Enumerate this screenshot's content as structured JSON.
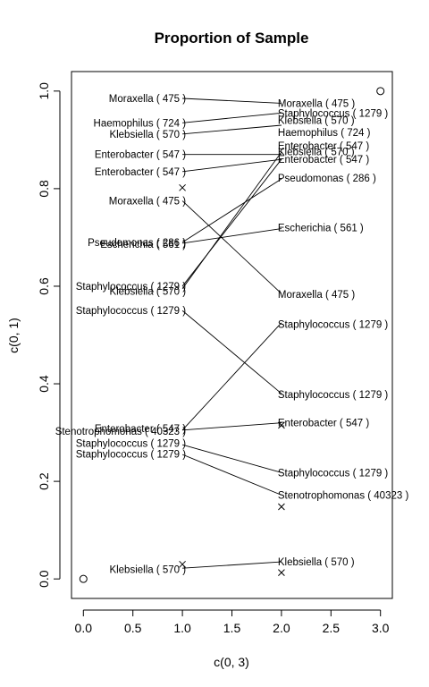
{
  "chart_data": {
    "type": "scatter",
    "title": "Proportion of Sample",
    "xlabel": "c(0, 3)",
    "ylabel": "c(0, 1)",
    "xlim": [
      -0.12,
      3.12
    ],
    "ylim": [
      -0.04,
      1.04
    ],
    "xticks": [
      0.0,
      0.5,
      1.0,
      1.5,
      2.0,
      2.5,
      3.0
    ],
    "xtick_labels": [
      "0.0",
      "0.5",
      "1.0",
      "1.5",
      "2.0",
      "2.5",
      "3.0"
    ],
    "yticks": [
      0.0,
      0.2,
      0.4,
      0.6,
      0.8,
      1.0
    ],
    "ytick_labels": [
      "0.0",
      "0.2",
      "0.4",
      "0.6",
      "0.8",
      "1.0"
    ],
    "grid": false,
    "corner_points": [
      {
        "x": 0,
        "y": 0
      },
      {
        "x": 3,
        "y": 1
      }
    ],
    "cross_points": [
      {
        "x": 1,
        "y": 0.802
      },
      {
        "x": 1,
        "y": 0.03
      },
      {
        "x": 2,
        "y": 0.148
      },
      {
        "x": 2,
        "y": 0.013
      },
      {
        "x": 2,
        "y": 0.315
      }
    ],
    "connections": [
      {
        "y1": 0.985,
        "y2": 0.975
      },
      {
        "y1": 0.935,
        "y2": 0.955
      },
      {
        "y1": 0.912,
        "y2": 0.93
      },
      {
        "y1": 0.87,
        "y2": 0.87
      },
      {
        "y1": 0.835,
        "y2": 0.86
      },
      {
        "y1": 0.775,
        "y2": 0.585
      },
      {
        "y1": 0.69,
        "y2": 0.82
      },
      {
        "y1": 0.688,
        "y2": 0.718
      },
      {
        "y1": 0.6,
        "y2": 0.86
      },
      {
        "y1": 0.595,
        "y2": 0.875
      },
      {
        "y1": 0.55,
        "y2": 0.38
      },
      {
        "y1": 0.305,
        "y2": 0.525
      },
      {
        "y1": 0.305,
        "y2": 0.32
      },
      {
        "y1": 0.275,
        "y2": 0.218
      },
      {
        "y1": 0.255,
        "y2": 0.172
      },
      {
        "y1": 0.022,
        "y2": 0.035
      }
    ],
    "labels": [
      {
        "text": "Moraxella ( 475 )",
        "x": 1,
        "y": 0.985,
        "pos": "left"
      },
      {
        "text": "Haemophilus ( 724 )",
        "x": 1,
        "y": 0.935,
        "pos": "left"
      },
      {
        "text": "Klebsiella ( 570 )",
        "x": 1,
        "y": 0.912,
        "pos": "left"
      },
      {
        "text": "Enterobacter ( 547 )",
        "x": 1,
        "y": 0.87,
        "pos": "left"
      },
      {
        "text": "Enterobacter ( 547 )",
        "x": 1,
        "y": 0.835,
        "pos": "left"
      },
      {
        "text": "Moraxella ( 475 )",
        "x": 1,
        "y": 0.775,
        "pos": "left"
      },
      {
        "text": "Pseudomonas ( 286 )",
        "x": 1,
        "y": 0.69,
        "pos": "left"
      },
      {
        "text": "Escherichia ( 561 )",
        "x": 1,
        "y": 0.686,
        "pos": "left"
      },
      {
        "text": "Staphylococcus ( 1279 )",
        "x": 1,
        "y": 0.6,
        "pos": "left"
      },
      {
        "text": "Klebsiella ( 570 )",
        "x": 1,
        "y": 0.59,
        "pos": "left"
      },
      {
        "text": "Staphylococcus ( 1279 )",
        "x": 1,
        "y": 0.55,
        "pos": "left"
      },
      {
        "text": "Enterobacter ( 547 )",
        "x": 1,
        "y": 0.308,
        "pos": "left"
      },
      {
        "text": "Stenotrophomonas ( 40323 )",
        "x": 1,
        "y": 0.303,
        "pos": "left"
      },
      {
        "text": "Staphylococcus ( 1279 )",
        "x": 1,
        "y": 0.278,
        "pos": "left"
      },
      {
        "text": "Staphylococcus ( 1279 )",
        "x": 1,
        "y": 0.256,
        "pos": "left"
      },
      {
        "text": "Klebsiella ( 570 )",
        "x": 1,
        "y": 0.02,
        "pos": "left"
      },
      {
        "text": "Moraxella ( 475 )",
        "x": 2,
        "y": 0.975,
        "pos": "right"
      },
      {
        "text": "Staphylococcus ( 1279 )",
        "x": 2,
        "y": 0.955,
        "pos": "right"
      },
      {
        "text": "Klebsiella ( 570 )",
        "x": 2,
        "y": 0.94,
        "pos": "right"
      },
      {
        "text": "Haemophilus ( 724 )",
        "x": 2,
        "y": 0.915,
        "pos": "right"
      },
      {
        "text": "Enterobacter ( 547 )",
        "x": 2,
        "y": 0.888,
        "pos": "right"
      },
      {
        "text": "Klebsiella ( 570 )",
        "x": 2,
        "y": 0.876,
        "pos": "right"
      },
      {
        "text": "Enterobacter ( 547 )",
        "x": 2,
        "y": 0.86,
        "pos": "right"
      },
      {
        "text": "Pseudomonas ( 286 )",
        "x": 2,
        "y": 0.822,
        "pos": "right"
      },
      {
        "text": "Escherichia ( 561 )",
        "x": 2,
        "y": 0.72,
        "pos": "right"
      },
      {
        "text": "Moraxella ( 475 )",
        "x": 2,
        "y": 0.583,
        "pos": "right"
      },
      {
        "text": "Staphylococcus ( 1279 )",
        "x": 2,
        "y": 0.522,
        "pos": "right"
      },
      {
        "text": "Staphylococcus ( 1279 )",
        "x": 2,
        "y": 0.378,
        "pos": "right"
      },
      {
        "text": "Enterobacter ( 547 )",
        "x": 2,
        "y": 0.32,
        "pos": "right"
      },
      {
        "text": "Staphylococcus ( 1279 )",
        "x": 2,
        "y": 0.218,
        "pos": "right"
      },
      {
        "text": "Stenotrophomonas ( 40323 )",
        "x": 2,
        "y": 0.172,
        "pos": "right"
      },
      {
        "text": "Klebsiella ( 570 )",
        "x": 2,
        "y": 0.035,
        "pos": "right"
      }
    ]
  }
}
